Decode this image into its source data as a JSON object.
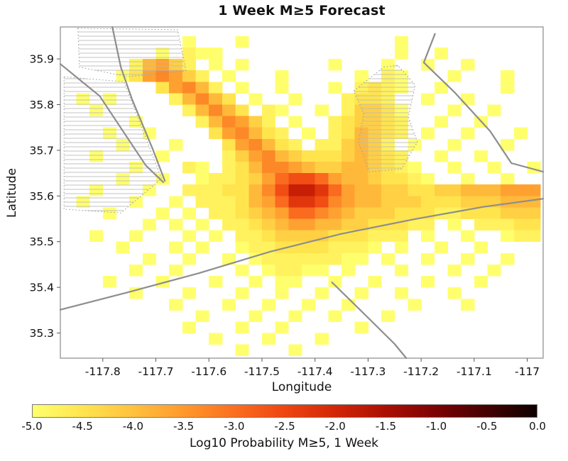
{
  "chart_data": {
    "type": "heatmap",
    "title": "1 Week M≥5 Forecast",
    "xlabel": "Longitude",
    "ylabel": "Latitude",
    "xlim": [
      -117.88,
      -116.97
    ],
    "ylim": [
      35.245,
      35.97
    ],
    "x_ticks": [
      -117.8,
      -117.7,
      -117.6,
      -117.5,
      -117.4,
      -117.3,
      -117.2,
      -117.1,
      -117.0
    ],
    "x_tick_labels": [
      "-117.8",
      "-117.7",
      "-117.6",
      "-117.5",
      "-117.4",
      "-117.3",
      "-117.2",
      "-117.1",
      "-117"
    ],
    "y_ticks": [
      35.9,
      35.8,
      35.7,
      35.6,
      35.5,
      35.4,
      35.3
    ],
    "y_tick_labels": [
      "35.9",
      "35.8",
      "35.7",
      "35.6",
      "35.5",
      "35.4",
      "35.3"
    ],
    "grid": {
      "x0": -117.875,
      "y_top": 35.95,
      "cell_deg": 0.025,
      "ncols": 36,
      "nrows": 28,
      "value_map": {
        ".": null,
        "1": -5.0,
        "2": -4.75,
        "3": -4.5,
        "4": -4.2,
        "5": -3.9,
        "6": -3.6,
        "7": -3.3,
        "8": -2.95,
        "9": -2.6,
        "A": -2.25,
        "B": -1.85
      },
      "rows": [
        ".........1...1...........1..........",
        ".......1.211.............1..1.......",
        ".....25642.1.1......1...1..1..1.....",
        "....1367642.1...1.....1.21...1...1..",
        ".......36752.1..1...1.2321..1....1..",
        ".1.1....25753.1..1...2332..1..1.....",
        "..1......25753.21..1.24431...1..1...",
        ".....1....257642.1..234432..1..1....",
        "...1..1....367532.1.235432.1..1...1.",
        "....1...1...367532.224542.1..1...1..",
        "..1....1....24675433345432..1..1....",
        ".....1...21.235776544554321..1..1..1",
        "....1..1..122346899865543321..1..1..",
        "..1...1..22233579BBA8655443344555666",
        ".1...1..1.2223568AA97655444333444555",
        "...1...1.1.2234568876544433322333444",
        "......1.1.1.2234566554433322.1.22233",
        "..1..1...1.1.2234444333222.1..1..122",
        "....1...1.1..12233332221.1..1..1....",
        "......1..1..1.122222211.1..1..1..1..",
        ".....1..1....1.12211.1...1...1..1...",
        "...1...1...1..1.11..1..1...1...1....",
        ".....1...1...1..1..1..1..1...1......",
        "........1...1..1..1..1....1...1.....",
        "..........1...1..1..1...1...........",
        ".........1...1..1.....1.............",
        "...........1...1...1................",
        ".............1...1.................."
      ]
    },
    "colormap": {
      "stops": [
        [
          -5.0,
          "#FFFF6E"
        ],
        [
          -4.5,
          "#FFE44E"
        ],
        [
          -4.0,
          "#FFC13E"
        ],
        [
          -3.5,
          "#FF992C"
        ],
        [
          -3.0,
          "#FB6E20"
        ],
        [
          -2.5,
          "#EE4511"
        ],
        [
          -2.0,
          "#D32606"
        ],
        [
          -1.5,
          "#AB0F04"
        ],
        [
          -1.0,
          "#7C0303"
        ],
        [
          -0.5,
          "#460101"
        ],
        [
          0.0,
          "#0D0000"
        ]
      ]
    },
    "colorbar": {
      "label": "Log10 Probability M≥5, 1 Week",
      "min": -5.0,
      "max": 0.0,
      "ticks": [
        -5.0,
        -4.5,
        -4.0,
        -3.5,
        -3.0,
        -2.5,
        -2.0,
        -1.5,
        -1.0,
        -0.5,
        0.0
      ],
      "tick_labels": [
        "-5.0",
        "-4.5",
        "-4.0",
        "-3.5",
        "-3.0",
        "-2.5",
        "-2.0",
        "-1.5",
        "-1.0",
        "-0.5",
        "0.0"
      ]
    },
    "overlays": {
      "fault_lines": [
        {
          "points": [
            [
              -117.782,
              35.97
            ],
            [
              -117.766,
              35.882
            ],
            [
              -117.745,
              35.812
            ],
            [
              -117.706,
              35.703
            ],
            [
              -117.683,
              35.633
            ]
          ]
        },
        {
          "points": [
            [
              -117.88,
              35.889
            ],
            [
              -117.806,
              35.819
            ],
            [
              -117.719,
              35.667
            ],
            [
              -117.686,
              35.63
            ]
          ]
        },
        {
          "points": [
            [
              -117.88,
              35.351
            ],
            [
              -117.753,
              35.389
            ],
            [
              -117.619,
              35.431
            ],
            [
              -117.485,
              35.478
            ],
            [
              -117.351,
              35.517
            ],
            [
              -117.218,
              35.548
            ],
            [
              -117.084,
              35.576
            ],
            [
              -116.97,
              35.594
            ]
          ]
        },
        {
          "points": [
            [
              -117.174,
              35.955
            ],
            [
              -117.195,
              35.892
            ],
            [
              -117.137,
              35.827
            ],
            [
              -117.07,
              35.742
            ],
            [
              -117.03,
              35.672
            ],
            [
              -116.97,
              35.653
            ]
          ]
        },
        {
          "points": [
            [
              -117.368,
              35.411
            ],
            [
              -117.311,
              35.346
            ],
            [
              -117.25,
              35.276
            ],
            [
              -117.228,
              35.245
            ]
          ]
        }
      ],
      "hatched_regions": [
        {
          "points": [
            [
              -117.847,
              35.967
            ],
            [
              -117.659,
              35.964
            ],
            [
              -117.643,
              35.874
            ],
            [
              -117.753,
              35.861
            ],
            [
              -117.844,
              35.882
            ]
          ]
        },
        {
          "points": [
            [
              -117.873,
              35.861
            ],
            [
              -117.76,
              35.85
            ],
            [
              -117.689,
              35.638
            ],
            [
              -117.766,
              35.563
            ],
            [
              -117.873,
              35.571
            ]
          ]
        },
        {
          "points": [
            [
              -117.327,
              35.83
            ],
            [
              -117.271,
              35.882
            ],
            [
              -117.244,
              35.886
            ],
            [
              -117.211,
              35.843
            ],
            [
              -117.224,
              35.773
            ],
            [
              -117.207,
              35.718
            ],
            [
              -117.237,
              35.659
            ],
            [
              -117.298,
              35.653
            ],
            [
              -117.318,
              35.718
            ],
            [
              -117.308,
              35.78
            ]
          ]
        }
      ]
    }
  }
}
